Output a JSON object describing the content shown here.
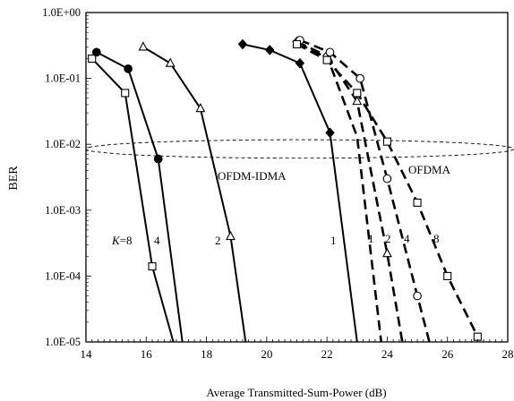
{
  "chart_data": {
    "type": "line",
    "xlabel": "Average Transmitted-Sum-Power (dB)",
    "ylabel": "BER",
    "xlim": [
      14,
      28
    ],
    "ylim": [
      1e-05,
      1
    ],
    "yscale": "log",
    "xticks": [
      "14",
      "16",
      "18",
      "20",
      "22",
      "24",
      "26",
      "28"
    ],
    "yticks": [
      "1.0E-05",
      "1.0E-04",
      "1.0E-03",
      "1.0E-02",
      "1.0E-01",
      "1.0E+00"
    ],
    "annotations": {
      "ofdm_idma": "OFDM-IDMA",
      "ofdma": "OFDMA",
      "k_label": "K=8",
      "k4": "4",
      "k2": "2",
      "k1": "1",
      "ofdma_k1": "1",
      "ofdma_k2": "2",
      "ofdma_k4": "4",
      "ofdma_k8": "8"
    },
    "ellipse": {
      "cx": 21.1,
      "cy": 0.0085,
      "rx": 7.1,
      "ry_decades": 0.14
    },
    "series": [
      {
        "group": "OFDM-IDMA",
        "K": 8,
        "marker": "square",
        "dash": false,
        "points": [
          [
            14.2,
            0.2
          ],
          [
            15.3,
            0.06
          ],
          [
            16.2,
            0.00014
          ],
          [
            16.9,
            1e-05
          ]
        ],
        "markers": [
          [
            14.2,
            0.2
          ],
          [
            15.3,
            0.06
          ],
          [
            16.2,
            0.00014
          ]
        ]
      },
      {
        "group": "OFDM-IDMA",
        "K": 4,
        "marker": "circle",
        "dash": false,
        "points": [
          [
            14.35,
            0.25
          ],
          [
            15.4,
            0.14
          ],
          [
            16.4,
            0.006
          ],
          [
            17.2,
            1e-05
          ]
        ],
        "markers": [
          [
            14.35,
            0.25
          ],
          [
            15.4,
            0.14
          ],
          [
            16.4,
            0.006
          ]
        ]
      },
      {
        "group": "OFDM-IDMA",
        "K": 2,
        "marker": "triangle",
        "dash": false,
        "points": [
          [
            15.9,
            0.3
          ],
          [
            16.8,
            0.17
          ],
          [
            17.8,
            0.035
          ],
          [
            18.8,
            0.0004
          ],
          [
            19.3,
            1e-05
          ]
        ],
        "markers": [
          [
            15.9,
            0.3
          ],
          [
            16.8,
            0.17
          ],
          [
            17.8,
            0.035
          ],
          [
            18.8,
            0.0004
          ]
        ]
      },
      {
        "group": "OFDM-IDMA",
        "K": 1,
        "marker": "diamond",
        "dash": false,
        "points": [
          [
            19.2,
            0.33
          ],
          [
            20.1,
            0.27
          ],
          [
            21.1,
            0.17
          ],
          [
            22.1,
            0.015
          ],
          [
            23.0,
            1e-05
          ]
        ],
        "markers": [
          [
            19.2,
            0.33
          ],
          [
            20.1,
            0.27
          ],
          [
            21.1,
            0.17
          ],
          [
            22.1,
            0.015
          ]
        ]
      },
      {
        "group": "OFDMA",
        "K": 1,
        "marker": "diamond",
        "dash": true,
        "points": [
          [
            21.0,
            0.36
          ],
          [
            22.0,
            0.22
          ],
          [
            23.0,
            0.013
          ],
          [
            23.8,
            1e-05
          ]
        ],
        "markers": [
          [
            21.0,
            0.36
          ],
          [
            22.0,
            0.22
          ]
        ]
      },
      {
        "group": "OFDMA",
        "K": 2,
        "marker": "triangle",
        "dash": true,
        "points": [
          [
            21.05,
            0.34
          ],
          [
            22.05,
            0.2
          ],
          [
            23.0,
            0.045
          ],
          [
            24.0,
            0.00022
          ],
          [
            24.5,
            1e-05
          ]
        ],
        "markers": [
          [
            21.05,
            0.34
          ],
          [
            22.05,
            0.2
          ],
          [
            23.0,
            0.045
          ],
          [
            24.0,
            0.00022
          ]
        ]
      },
      {
        "group": "OFDMA",
        "K": 4,
        "marker": "circle",
        "dash": true,
        "points": [
          [
            21.1,
            0.38
          ],
          [
            22.1,
            0.25
          ],
          [
            23.1,
            0.1
          ],
          [
            24.0,
            0.003
          ],
          [
            25.0,
            5e-05
          ],
          [
            25.4,
            1e-05
          ]
        ],
        "markers": [
          [
            21.1,
            0.38
          ],
          [
            22.1,
            0.25
          ],
          [
            23.1,
            0.1
          ],
          [
            24.0,
            0.003
          ],
          [
            25.0,
            5e-05
          ]
        ]
      },
      {
        "group": "OFDMA",
        "K": 8,
        "marker": "square",
        "dash": true,
        "points": [
          [
            21.0,
            0.33
          ],
          [
            22.0,
            0.19
          ],
          [
            23.0,
            0.06
          ],
          [
            24.0,
            0.011
          ],
          [
            25.0,
            0.0013
          ],
          [
            26.0,
            0.0001
          ],
          [
            27.0,
            1.2e-05
          ]
        ],
        "markers": [
          [
            21.0,
            0.33
          ],
          [
            22.0,
            0.19
          ],
          [
            23.0,
            0.06
          ],
          [
            24.0,
            0.011
          ],
          [
            25.0,
            0.0013
          ],
          [
            26.0,
            0.0001
          ],
          [
            27.0,
            1.2e-05
          ]
        ]
      }
    ]
  }
}
